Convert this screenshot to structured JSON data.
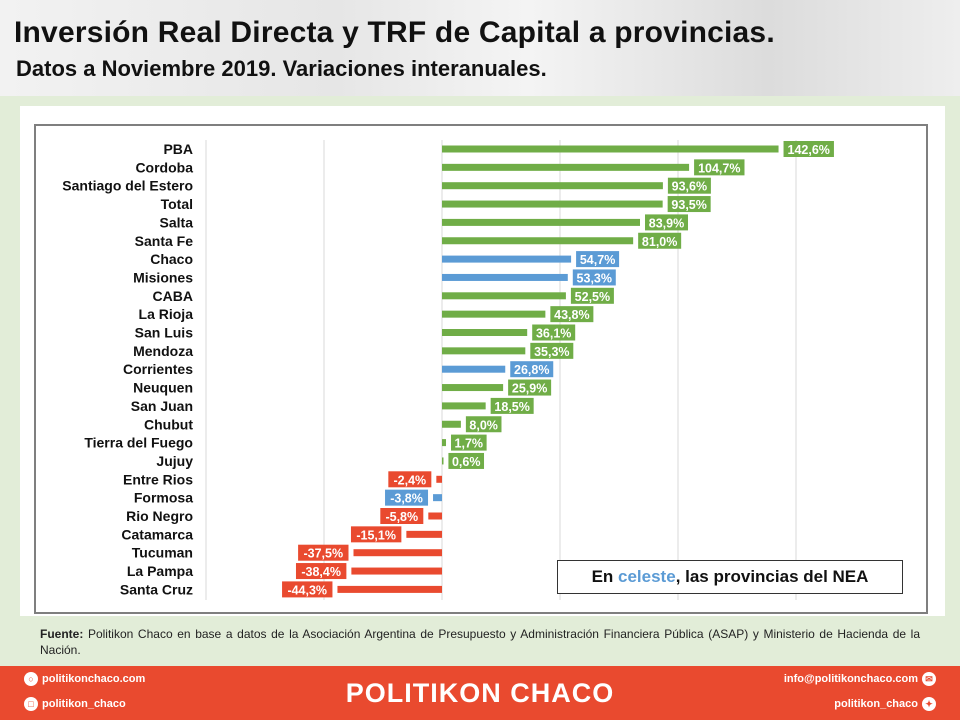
{
  "header": {
    "title": "Inversión Real Directa y TRF de Capital a provincias.",
    "subtitle": "Datos a Noviembre 2019. Variaciones interanuales."
  },
  "note": {
    "prefix": "En ",
    "highlight": "celeste",
    "suffix": ", las provincias del NEA"
  },
  "source": {
    "label": "Fuente:",
    "text": " Politikon Chaco en base a datos de la Asociación Argentina de Presupuesto y Administración Financiera Pública (ASAP) y Ministerio de Hacienda de la Nación."
  },
  "footer": {
    "brand": "POLITIKON CHACO",
    "website": "politikonchaco.com",
    "instagram": "politikon_chaco",
    "email": "info@politikonchaco.com",
    "twitter": "politikon_chaco"
  },
  "colors": {
    "green": "#70ad47",
    "blue": "#5b9bd5",
    "red": "#e94a2f"
  },
  "chart_data": {
    "type": "bar",
    "orientation": "horizontal",
    "categories": [
      "PBA",
      "Cordoba",
      "Santiago del Estero",
      "Total",
      "Salta",
      "Santa Fe",
      "Chaco",
      "Misiones",
      "CABA",
      "La Rioja",
      "San Luis",
      "Mendoza",
      "Corrientes",
      "Neuquen",
      "San Juan",
      "Chubut",
      "Tierra del Fuego",
      "Jujuy",
      "Entre Rios",
      "Formosa",
      "Rio Negro",
      "Catamarca",
      "Tucuman",
      "La Pampa",
      "Santa Cruz"
    ],
    "values": [
      142.6,
      104.7,
      93.6,
      93.5,
      83.9,
      81.0,
      54.7,
      53.3,
      52.5,
      43.8,
      36.1,
      35.3,
      26.8,
      25.9,
      18.5,
      8.0,
      1.7,
      0.6,
      -2.4,
      -3.8,
      -5.8,
      -15.1,
      -37.5,
      -38.4,
      -44.3
    ],
    "labels": [
      "142,6%",
      "104,7%",
      "93,6%",
      "93,5%",
      "83,9%",
      "81,0%",
      "54,7%",
      "53,3%",
      "52,5%",
      "43,8%",
      "36,1%",
      "35,3%",
      "26,8%",
      "25,9%",
      "18,5%",
      "8,0%",
      "1,7%",
      "0,6%",
      "-2,4%",
      "-3,8%",
      "-5,8%",
      "-15,1%",
      "-37,5%",
      "-38,4%",
      "-44,3%"
    ],
    "groups": [
      "pos",
      "pos",
      "pos",
      "pos",
      "pos",
      "pos",
      "nea",
      "nea",
      "pos",
      "pos",
      "pos",
      "pos",
      "nea",
      "pos",
      "pos",
      "pos",
      "pos",
      "pos",
      "neg",
      "nea",
      "neg",
      "neg",
      "neg",
      "neg",
      "neg"
    ],
    "xlim": [
      -100,
      150
    ],
    "gridlines": [
      -100,
      -50,
      0,
      50,
      100,
      150
    ],
    "grid": true,
    "legend": "none"
  }
}
